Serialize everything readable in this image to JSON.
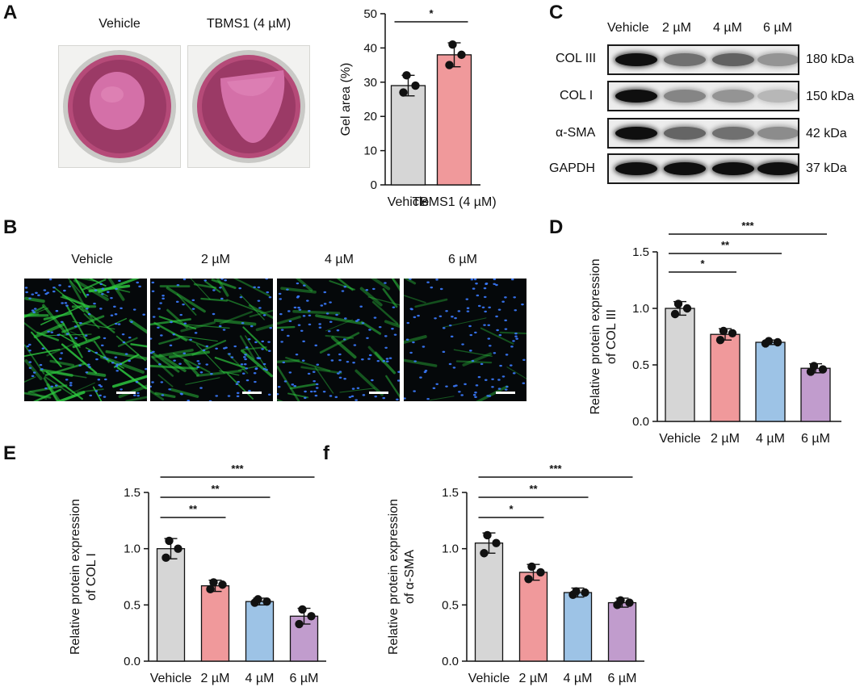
{
  "panel_labels": {
    "A": "A",
    "B": "B",
    "C": "C",
    "D": "D",
    "E": "E",
    "F": "f"
  },
  "colors": {
    "vehicle": "#d6d6d6",
    "dose2": "#f0999b",
    "dose4": "#9dc3e6",
    "dose6": "#c19ccd",
    "edge": "#1a1a1a",
    "nucleus": "#3b7bff",
    "fiber": "#2ecc40"
  },
  "panel_a": {
    "well_labels": [
      "Vehicle",
      "TBMS1 (4 µM)"
    ]
  },
  "panel_b": {
    "image_labels": [
      "Vehicle",
      "2 µM",
      "4 µM",
      "6 µM"
    ],
    "fiber_intensity": [
      1.0,
      0.65,
      0.4,
      0.12
    ]
  },
  "panel_c": {
    "lane_labels": [
      "Vehicle",
      "2 µM",
      "4 µM",
      "6 µM"
    ],
    "rows": [
      {
        "protein": "COL III",
        "size": "180 kDa",
        "intensity": [
          1.0,
          0.55,
          0.62,
          0.38
        ]
      },
      {
        "protein": "COL I",
        "size": "150 kDa",
        "intensity": [
          1.0,
          0.45,
          0.38,
          0.22
        ]
      },
      {
        "protein": "α-SMA",
        "size": "42 kDa",
        "intensity": [
          1.0,
          0.6,
          0.55,
          0.42
        ]
      },
      {
        "protein": "GAPDH",
        "size": "37 kDa",
        "intensity": [
          1.0,
          1.0,
          1.0,
          1.0
        ]
      }
    ]
  },
  "chart_data": [
    {
      "id": "A",
      "type": "bar",
      "categories": [
        "Vehicle",
        "TBMS1 (4 µM)"
      ],
      "values": [
        29,
        38
      ],
      "errors": [
        3,
        3.5
      ],
      "points": [
        [
          27,
          29,
          32
        ],
        [
          35,
          38,
          41
        ]
      ],
      "ylabel": "Gel area (%)",
      "ylim": [
        0,
        50
      ],
      "yticks": [
        "0",
        "10",
        "20",
        "30",
        "40",
        "50"
      ],
      "significance": [
        {
          "from": 0,
          "to": 1,
          "label": "*"
        }
      ]
    },
    {
      "id": "D",
      "type": "bar",
      "categories": [
        "Vehicle",
        "2 µM",
        "4 µM",
        "6 µM"
      ],
      "values": [
        1.0,
        0.77,
        0.7,
        0.47
      ],
      "errors": [
        0.06,
        0.05,
        0.02,
        0.04
      ],
      "points": [
        [
          0.95,
          1.0,
          1.04
        ],
        [
          0.72,
          0.78,
          0.8
        ],
        [
          0.69,
          0.7,
          0.71
        ],
        [
          0.44,
          0.46,
          0.49
        ]
      ],
      "ylabel": [
        "Relative protein expression",
        "of COL III"
      ],
      "ylim": [
        0,
        1.5
      ],
      "yticks": [
        "0.0",
        "0.5",
        "1.0",
        "1.5"
      ],
      "significance": [
        {
          "from": 0,
          "to": 1,
          "label": "*"
        },
        {
          "from": 0,
          "to": 2,
          "label": "**"
        },
        {
          "from": 0,
          "to": 3,
          "label": "***"
        }
      ]
    },
    {
      "id": "E",
      "type": "bar",
      "categories": [
        "Vehicle",
        "2 µM",
        "4 µM",
        "6 µM"
      ],
      "values": [
        1.0,
        0.67,
        0.53,
        0.4
      ],
      "errors": [
        0.09,
        0.05,
        0.03,
        0.07
      ],
      "points": [
        [
          0.92,
          1.0,
          1.07
        ],
        [
          0.64,
          0.68,
          0.7
        ],
        [
          0.52,
          0.53,
          0.55
        ],
        [
          0.33,
          0.4,
          0.46
        ]
      ],
      "ylabel": [
        "Relative protein expression",
        "of COL I"
      ],
      "ylim": [
        0,
        1.5
      ],
      "yticks": [
        "0.0",
        "0.5",
        "1.0",
        "1.5"
      ],
      "significance": [
        {
          "from": 0,
          "to": 1,
          "label": "**"
        },
        {
          "from": 0,
          "to": 2,
          "label": "**"
        },
        {
          "from": 0,
          "to": 3,
          "label": "***"
        }
      ]
    },
    {
      "id": "F",
      "type": "bar",
      "categories": [
        "Vehicle",
        "2 µM",
        "4 µM",
        "6 µM"
      ],
      "values": [
        1.05,
        0.79,
        0.61,
        0.52
      ],
      "errors": [
        0.09,
        0.07,
        0.04,
        0.04
      ],
      "points": [
        [
          0.96,
          1.05,
          1.12
        ],
        [
          0.73,
          0.79,
          0.84
        ],
        [
          0.59,
          0.61,
          0.62
        ],
        [
          0.5,
          0.52,
          0.54
        ]
      ],
      "ylabel": [
        "Relative protein expression",
        "of α-SMA"
      ],
      "ylim": [
        0,
        1.5
      ],
      "yticks": [
        "0.0",
        "0.5",
        "1.0",
        "1.5"
      ],
      "significance": [
        {
          "from": 0,
          "to": 1,
          "label": "*"
        },
        {
          "from": 0,
          "to": 2,
          "label": "**"
        },
        {
          "from": 0,
          "to": 3,
          "label": "***"
        }
      ]
    }
  ]
}
